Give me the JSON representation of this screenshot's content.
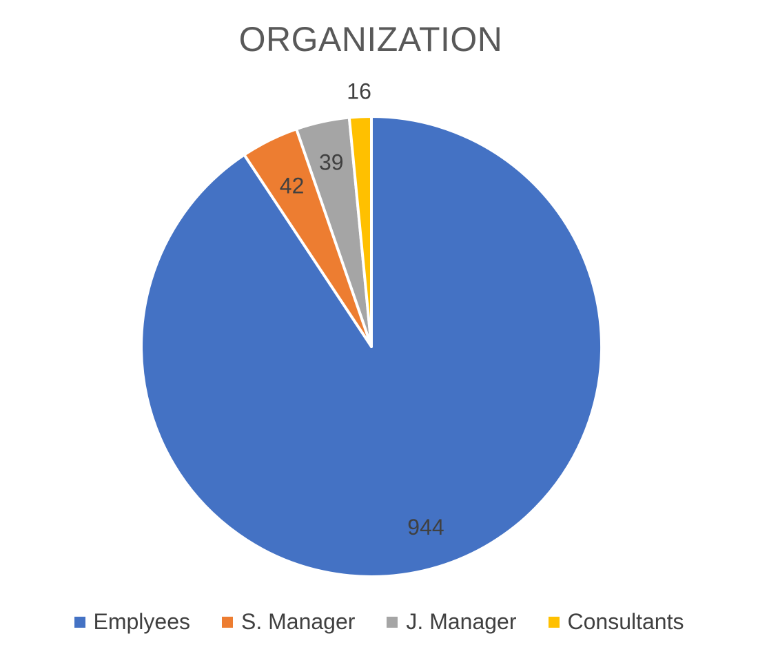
{
  "chart_data": {
    "type": "pie",
    "title": "ORGANIZATION",
    "categories": [
      "Emplyees",
      "S. Manager",
      "J. Manager",
      "Consultants"
    ],
    "values": [
      944,
      42,
      39,
      16
    ],
    "colors": [
      "#4472C4",
      "#ED7D31",
      "#A5A5A5",
      "#FFC000"
    ],
    "start_angle": "12 o'clock",
    "direction": "clockwise",
    "legend_position": "bottom",
    "show_data_labels": true
  }
}
